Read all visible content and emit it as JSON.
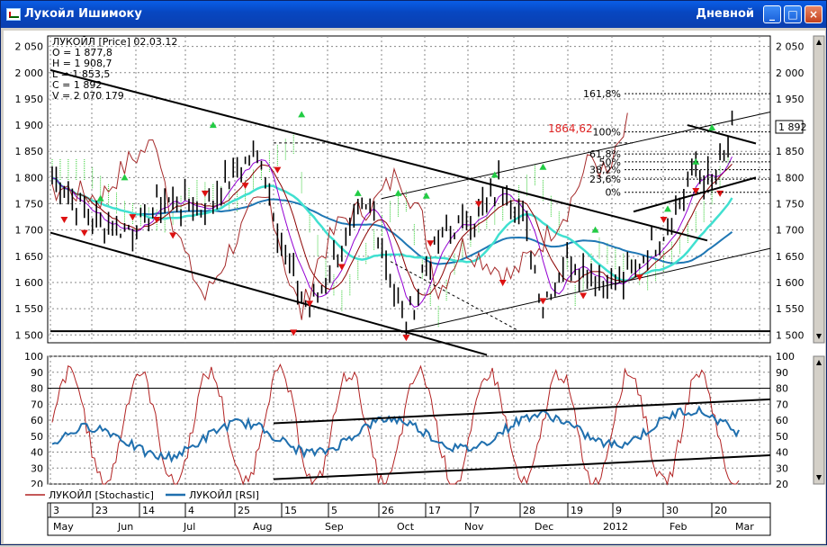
{
  "window": {
    "title": "Лукойл Ишимоку",
    "period": "Дневной",
    "minimize_glyph": "_",
    "maximize_glyph": "□",
    "close_glyph": "×"
  },
  "price_panel": {
    "info_lines": [
      "ЛУКОЙЛ [Price] 02.03.12",
      "O = 1 877,8",
      "H = 1 908,7",
      "L = 1 853,5",
      "C = 1 892",
      "V = 2 070 179"
    ],
    "y_ticks": [
      "2 050",
      "2 000",
      "1 950",
      "1 900",
      "1 850",
      "1 800",
      "1 750",
      "1 700",
      "1 650",
      "1 600",
      "1 550",
      "1 500"
    ],
    "y_tick_values": [
      2050,
      2000,
      1950,
      1900,
      1850,
      1800,
      1750,
      1700,
      1650,
      1600,
      1550,
      1500
    ],
    "ylim": [
      1485,
      2070
    ],
    "last_price_label": "1 892",
    "fib_labels": [
      "161,8%",
      "100%",
      "61,8%",
      "50%",
      "38,2%",
      "23,6%",
      "0%"
    ],
    "fib_values": [
      1960,
      1887,
      1845,
      1830,
      1815,
      1797,
      1772
    ],
    "marker_value": "1864,62"
  },
  "oscillator_panel": {
    "y_ticks": [
      "100",
      "90",
      "80",
      "70",
      "60",
      "50",
      "40",
      "30",
      "20"
    ],
    "y_tick_values": [
      100,
      90,
      80,
      70,
      60,
      50,
      40,
      30,
      20
    ],
    "ylim": [
      20,
      100
    ],
    "legend": [
      {
        "label": "ЛУКОЙЛ [Stochastic]",
        "color": "#b22222"
      },
      {
        "label": "ЛУКОЙЛ [RSI]",
        "color": "#1f6fae"
      }
    ]
  },
  "time_axis": {
    "days": [
      "3",
      "23",
      "14",
      "4",
      "25",
      "15",
      "5",
      "26",
      "17",
      "7",
      "28",
      "19",
      "9",
      "30",
      "20"
    ],
    "months": [
      "May",
      "Jun",
      "Jul",
      "Aug",
      "Sep",
      "Oct",
      "Nov",
      "Dec",
      "2012",
      "Feb",
      "Mar"
    ]
  },
  "colors": {
    "price_bars": "#000000",
    "tenkan": "#8b0000",
    "kijun": "#9400d3",
    "chikou": "#a52a2a",
    "ma_slow": "#1f77b4",
    "ma_fast": "#40e0d0",
    "cloud": "#32cd32",
    "signal_up": "#22cc44",
    "signal_down": "#dd1111",
    "stochastic": "#b22222",
    "rsi": "#1f6fae"
  }
}
